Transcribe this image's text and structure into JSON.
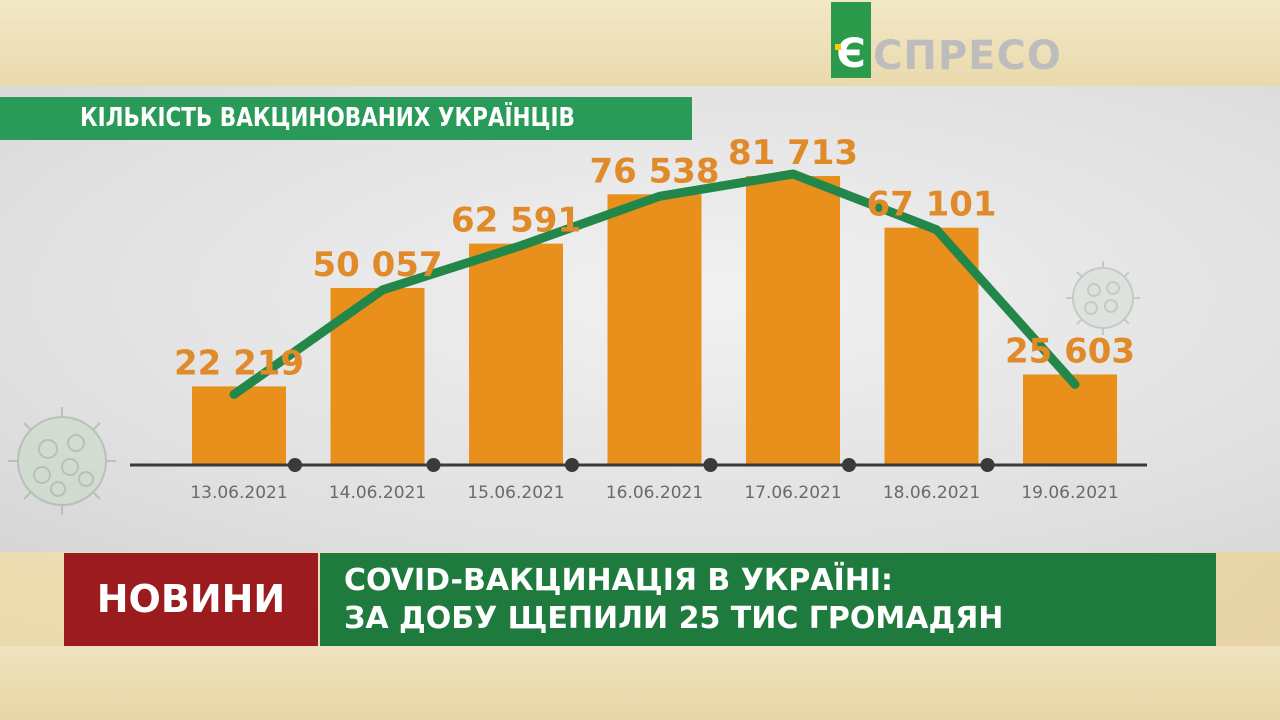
{
  "brand": {
    "logo_letter": "Є",
    "logo_text": "СПРЕСО"
  },
  "header": {
    "title": "КІЛЬКІСТЬ ВАКЦИНОВАНИХ УКРАЇНЦІВ"
  },
  "lower_third": {
    "section_label": "НОВИНИ",
    "headline_line1": "COVID-ВАКЦИНАЦІЯ В УКРАЇНІ:",
    "headline_line2": "ЗА ДОБУ ЩЕПИЛИ 25 ТИС  ГРОМАДЯН"
  },
  "colors": {
    "bar": "#e98f1c",
    "label": "#e08a2a",
    "line": "#24874a",
    "title_bg": "#2a9a59",
    "news_bg": "#9b1b1f",
    "headline_bg": "#1f7a3e"
  },
  "chart_data": {
    "type": "bar",
    "title": "КІЛЬКІСТЬ ВАКЦИНОВАНИХ УКРАЇНЦІВ",
    "categories": [
      "13.06.2021",
      "14.06.2021",
      "15.06.2021",
      "16.06.2021",
      "17.06.2021",
      "18.06.2021",
      "19.06.2021"
    ],
    "values": [
      22219,
      50057,
      62591,
      76538,
      81713,
      67101,
      25603
    ],
    "value_labels": [
      "22 219",
      "50 057",
      "62 591",
      "76 538",
      "81 713",
      "67 101",
      "25 603"
    ],
    "overlay": "line",
    "ylim": [
      0,
      85000
    ],
    "grid": false
  }
}
